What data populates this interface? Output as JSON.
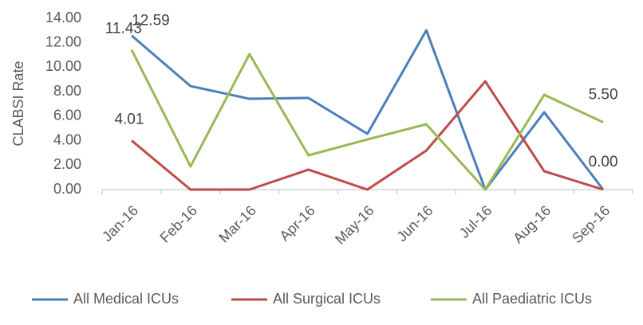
{
  "chart_data": {
    "type": "line",
    "y_label": "CLABSI Rate",
    "categories": [
      "Jan-16",
      "Feb-16",
      "Mar-16",
      "Apr-16",
      "May-16",
      "Jun-16",
      "Jul-16",
      "Aug-16",
      "Sep-16"
    ],
    "series": [
      {
        "name": "All Medical ICUs",
        "color": "#4a7ebb",
        "values": [
          12.59,
          8.46,
          7.42,
          7.49,
          4.56,
          13.02,
          0,
          6.32,
          0
        ],
        "value_labels": [
          "12.59",
          null,
          null,
          null,
          null,
          null,
          null,
          null,
          "0.00"
        ]
      },
      {
        "name": "All Surgical ICUs",
        "color": "#be4b48",
        "values": [
          4.01,
          0,
          0,
          1.63,
          0,
          3.19,
          8.85,
          1.5,
          0
        ],
        "value_labels": [
          "4.01",
          null,
          null,
          null,
          null,
          null,
          null,
          null,
          null
        ]
      },
      {
        "name": "All Paediatric ICUs",
        "color": "#98b954",
        "values": [
          11.43,
          1.89,
          11.07,
          2.8,
          4.1,
          5.34,
          0,
          7.75,
          5.5
        ],
        "value_labels": [
          "11.43",
          null,
          null,
          null,
          null,
          null,
          null,
          null,
          "5.50"
        ]
      }
    ],
    "ylim": [
      0,
      14
    ],
    "yticks": [
      {
        "value": 0,
        "label": "0.00"
      },
      {
        "value": 2,
        "label": "2.00"
      },
      {
        "value": 4,
        "label": "4.00"
      },
      {
        "value": 6,
        "label": "6.00"
      },
      {
        "value": 8,
        "label": "8.00"
      },
      {
        "value": 10,
        "label": "10.00"
      },
      {
        "value": 12,
        "label": "12.00"
      },
      {
        "value": 14,
        "label": "14.00"
      }
    ],
    "grid": false,
    "legend": "bottom"
  }
}
